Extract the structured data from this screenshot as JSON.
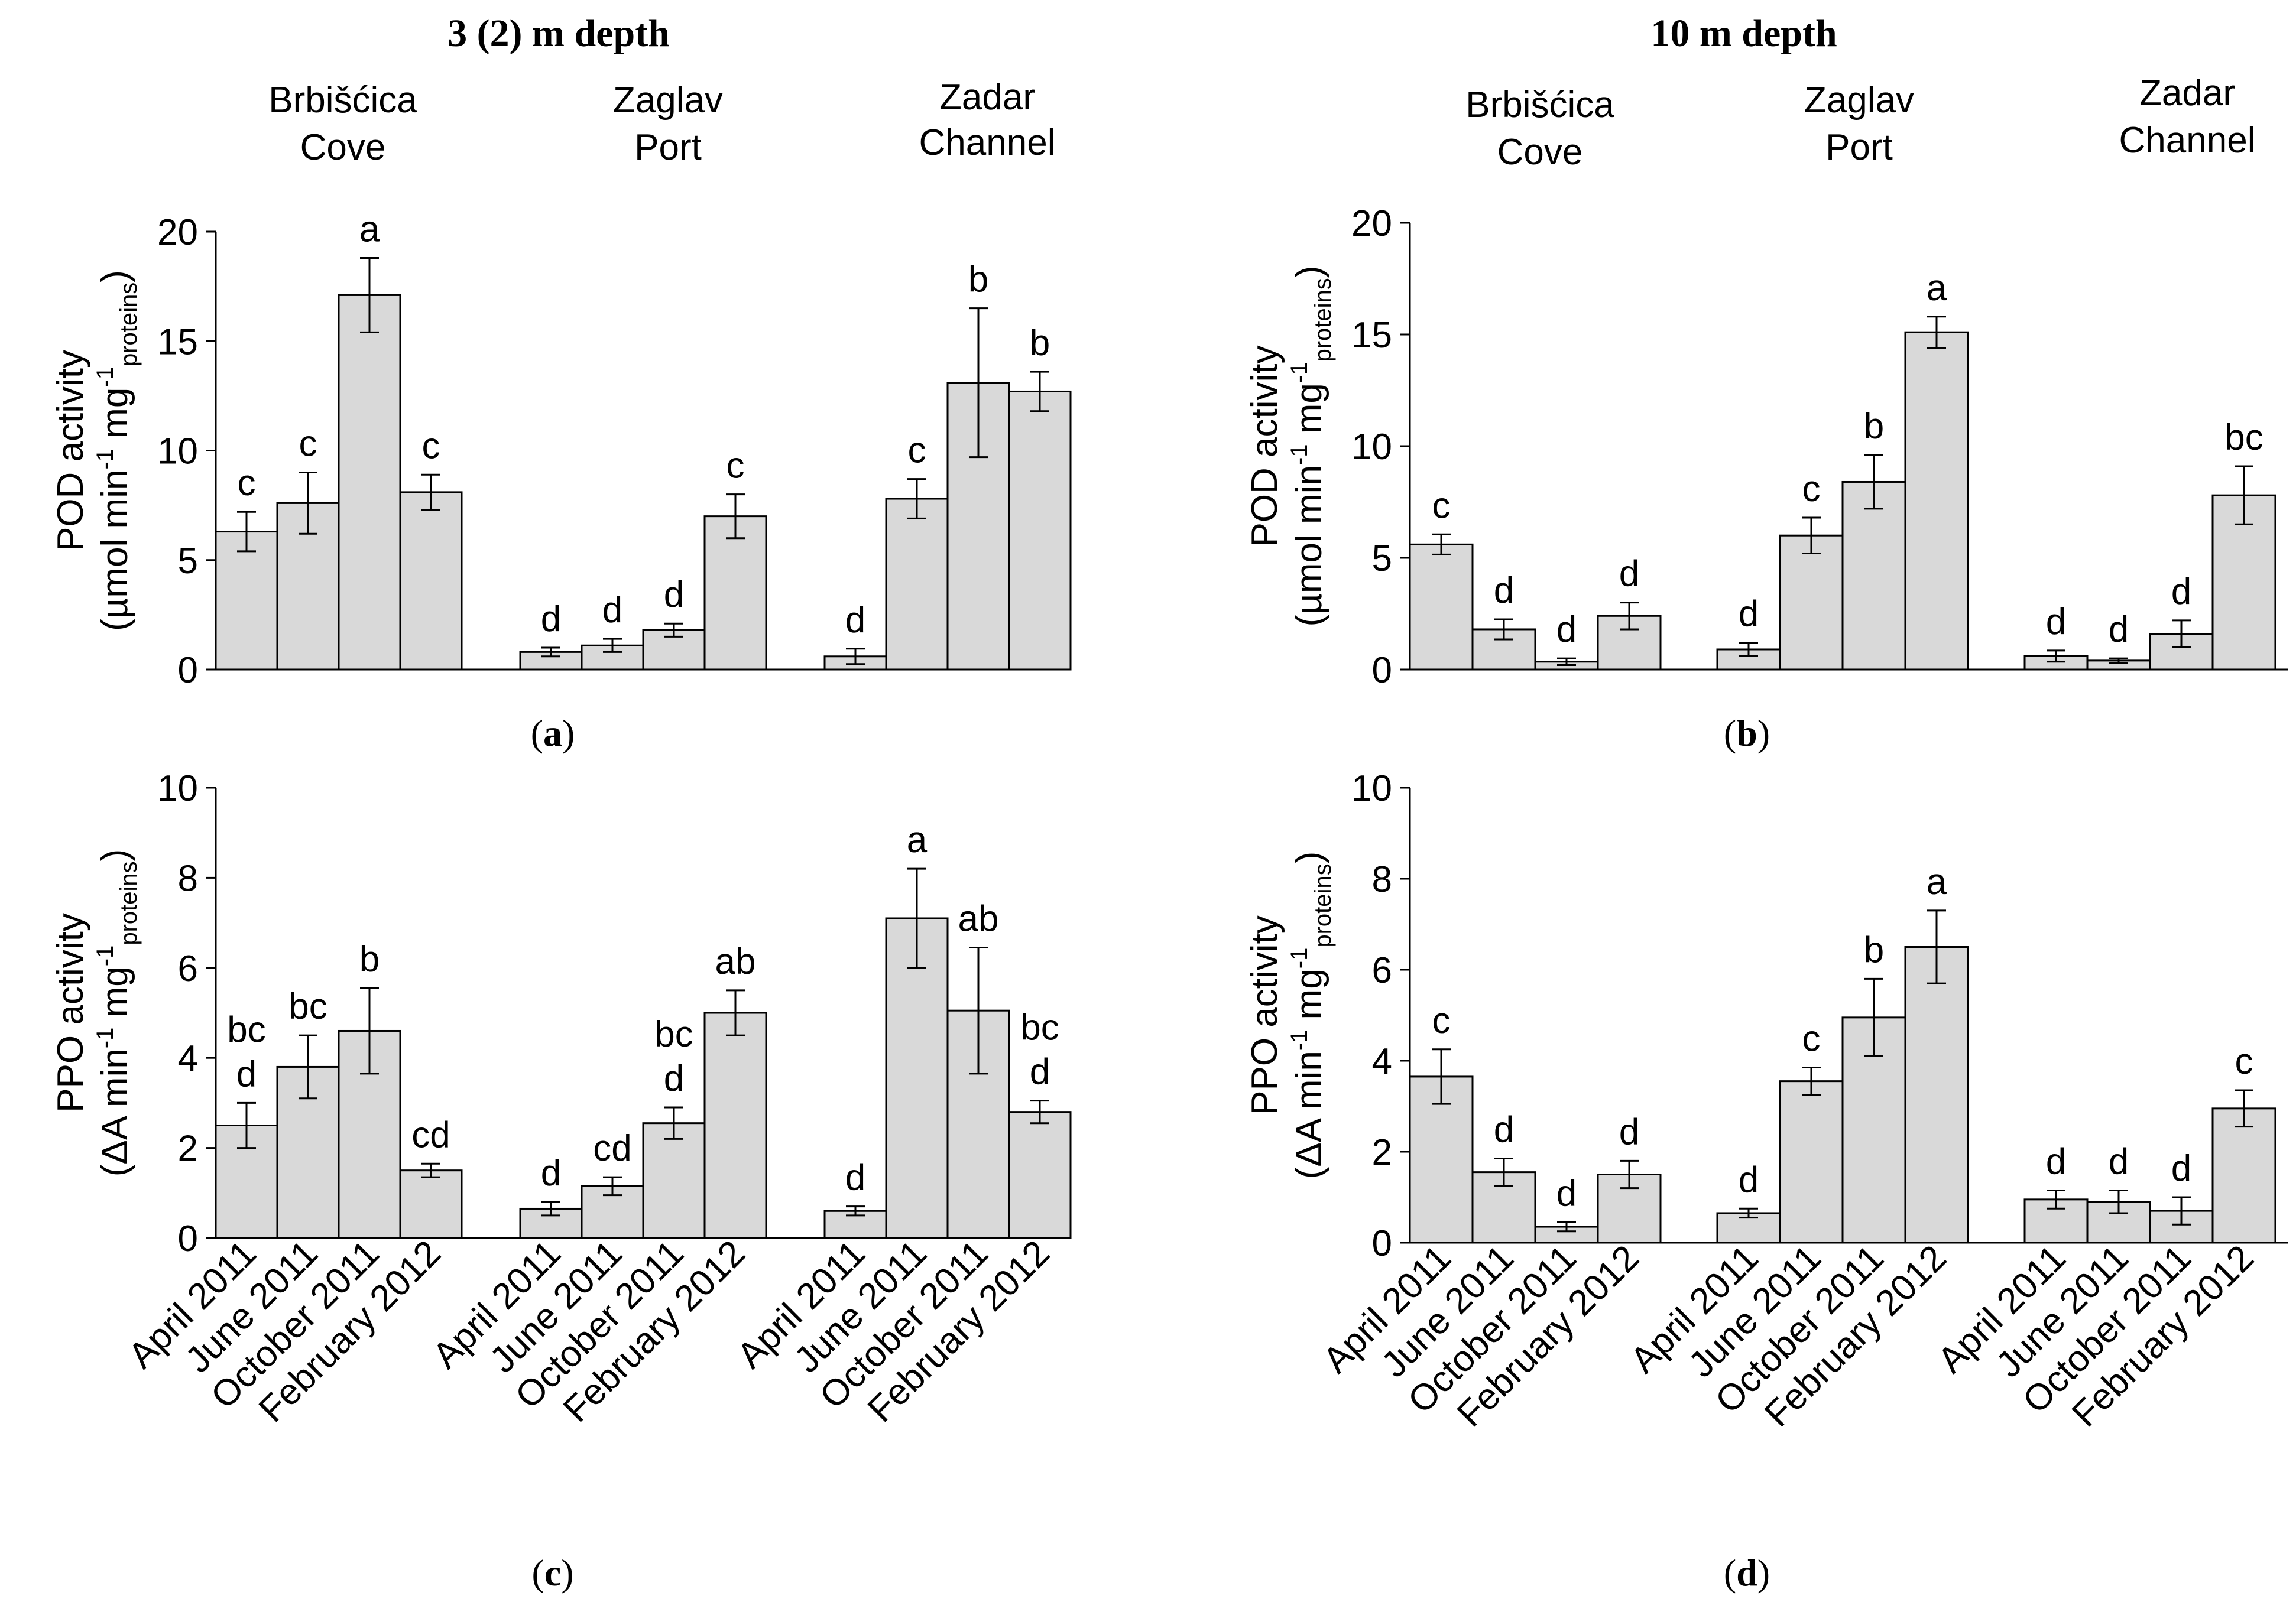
{
  "headers": {
    "left": "3 (2) m depth",
    "right": "10 m depth"
  },
  "sites": [
    {
      "line1": "Brbišćica",
      "line2": "Cove"
    },
    {
      "line1": "Zaglav",
      "line2": "Port"
    },
    {
      "line1": "Zadar",
      "line2": "Channel"
    }
  ],
  "months": [
    "April 2011",
    "June 2011",
    "October 2011",
    "February 2012"
  ],
  "panel_labels": {
    "a": "a",
    "b": "b",
    "c": "c",
    "d": "d"
  },
  "colors": {
    "bar_fill": "#d9d9d9",
    "stroke": "#000000",
    "background": "#ffffff"
  },
  "chart_data": [
    {
      "id": "a",
      "type": "bar",
      "title": "3 (2) m depth",
      "ylabel_main": "POD activity",
      "ylabel_unit": "(µmol min",
      "ylabel_unit_2": "mg",
      "ylabel_sup": "-1",
      "ylabel_sub": "proteins",
      "ylabel_close": ")",
      "ylim": [
        0,
        20
      ],
      "yticks": [
        0,
        5,
        10,
        15,
        20
      ],
      "categories": [
        "Brbišćica Cove",
        "Zaglav Port",
        "Zadar Channel"
      ],
      "series": [
        {
          "name": "April 2011",
          "values": [
            6.3,
            0.8,
            0.6
          ],
          "errors": [
            0.9,
            0.2,
            0.35
          ],
          "letters": [
            "c",
            "d",
            "d"
          ]
        },
        {
          "name": "June 2011",
          "values": [
            7.6,
            1.1,
            7.8
          ],
          "errors": [
            1.4,
            0.3,
            0.9
          ],
          "letters": [
            "c",
            "d",
            "c"
          ]
        },
        {
          "name": "October 2011",
          "values": [
            17.1,
            1.8,
            13.1
          ],
          "errors": [
            1.7,
            0.3,
            3.4
          ],
          "letters": [
            "a",
            "d",
            "b"
          ]
        },
        {
          "name": "February 2012",
          "values": [
            8.1,
            7.0,
            12.7
          ],
          "errors": [
            0.8,
            1.0,
            0.9
          ],
          "letters": [
            "c",
            "c",
            "b"
          ]
        }
      ]
    },
    {
      "id": "b",
      "type": "bar",
      "title": "10 m depth",
      "ylabel_main": "POD activity",
      "ylabel_unit": "(µmol min",
      "ylabel_unit_2": "mg",
      "ylabel_sup": "-1",
      "ylabel_sub": "proteins",
      "ylabel_close": ")",
      "ylim": [
        0,
        20
      ],
      "yticks": [
        0,
        5,
        10,
        15,
        20
      ],
      "categories": [
        "Brbišćica Cove",
        "Zaglav Port",
        "Zadar Channel"
      ],
      "series": [
        {
          "name": "April 2011",
          "values": [
            5.6,
            0.9,
            0.6
          ],
          "errors": [
            0.45,
            0.3,
            0.25
          ],
          "letters": [
            "c",
            "d",
            "d"
          ]
        },
        {
          "name": "June 2011",
          "values": [
            1.8,
            6.0,
            0.4
          ],
          "errors": [
            0.45,
            0.8,
            0.1
          ],
          "letters": [
            "d",
            "c",
            "d"
          ]
        },
        {
          "name": "October 2011",
          "values": [
            0.35,
            8.4,
            1.6
          ],
          "errors": [
            0.15,
            1.2,
            0.6
          ],
          "letters": [
            "d",
            "b",
            "d"
          ]
        },
        {
          "name": "February 2012",
          "values": [
            2.4,
            15.1,
            7.8
          ],
          "errors": [
            0.6,
            0.7,
            1.3
          ],
          "letters": [
            "d",
            "a",
            "bc"
          ]
        }
      ]
    },
    {
      "id": "c",
      "type": "bar",
      "ylabel_main": "PPO activity",
      "ylabel_unit": "(ΔA min",
      "ylabel_unit_2": "mg",
      "ylabel_sup": "-1",
      "ylabel_sub": "proteins",
      "ylabel_close": ")",
      "ylim": [
        0,
        10
      ],
      "yticks": [
        0,
        2,
        4,
        6,
        8,
        10
      ],
      "categories": [
        "Brbišćica Cove",
        "Zaglav Port",
        "Zadar Channel"
      ],
      "series": [
        {
          "name": "April 2011",
          "values": [
            2.5,
            0.65,
            0.6
          ],
          "errors": [
            0.5,
            0.15,
            0.1
          ],
          "letters": [
            "bc d",
            "d",
            "d"
          ]
        },
        {
          "name": "June 2011",
          "values": [
            3.8,
            1.15,
            7.1
          ],
          "errors": [
            0.7,
            0.2,
            1.1
          ],
          "letters": [
            "bc",
            "cd",
            "a"
          ]
        },
        {
          "name": "October 2011",
          "values": [
            4.6,
            2.55,
            5.05
          ],
          "errors": [
            0.95,
            0.35,
            1.4
          ],
          "letters": [
            "b",
            "bc d",
            "ab"
          ]
        },
        {
          "name": "February 2012",
          "values": [
            1.5,
            5.0,
            2.8
          ],
          "errors": [
            0.15,
            0.5,
            0.25
          ],
          "letters": [
            "cd",
            "ab",
            "bc d"
          ]
        }
      ]
    },
    {
      "id": "d",
      "type": "bar",
      "ylabel_main": "PPO activity",
      "ylabel_unit": "(ΔA min",
      "ylabel_unit_2": "mg",
      "ylabel_sup": "-1",
      "ylabel_sub": "proteins",
      "ylabel_close": ")",
      "ylim": [
        0,
        10
      ],
      "yticks": [
        0,
        2,
        4,
        6,
        8,
        10
      ],
      "categories": [
        "Brbišćica Cove",
        "Zaglav Port",
        "Zadar Channel"
      ],
      "series": [
        {
          "name": "April 2011",
          "values": [
            3.65,
            0.65,
            0.95
          ],
          "errors": [
            0.6,
            0.1,
            0.2
          ],
          "letters": [
            "c",
            "d",
            "d"
          ]
        },
        {
          "name": "June 2011",
          "values": [
            1.55,
            3.55,
            0.9
          ],
          "errors": [
            0.3,
            0.3,
            0.25
          ],
          "letters": [
            "d",
            "c",
            "d"
          ]
        },
        {
          "name": "October 2011",
          "values": [
            0.35,
            4.95,
            0.7
          ],
          "errors": [
            0.1,
            0.85,
            0.3
          ],
          "letters": [
            "d",
            "b",
            "d"
          ]
        },
        {
          "name": "February 2012",
          "values": [
            1.5,
            6.5,
            2.95
          ],
          "errors": [
            0.3,
            0.8,
            0.4
          ],
          "letters": [
            "d",
            "a",
            "c"
          ]
        }
      ]
    }
  ]
}
